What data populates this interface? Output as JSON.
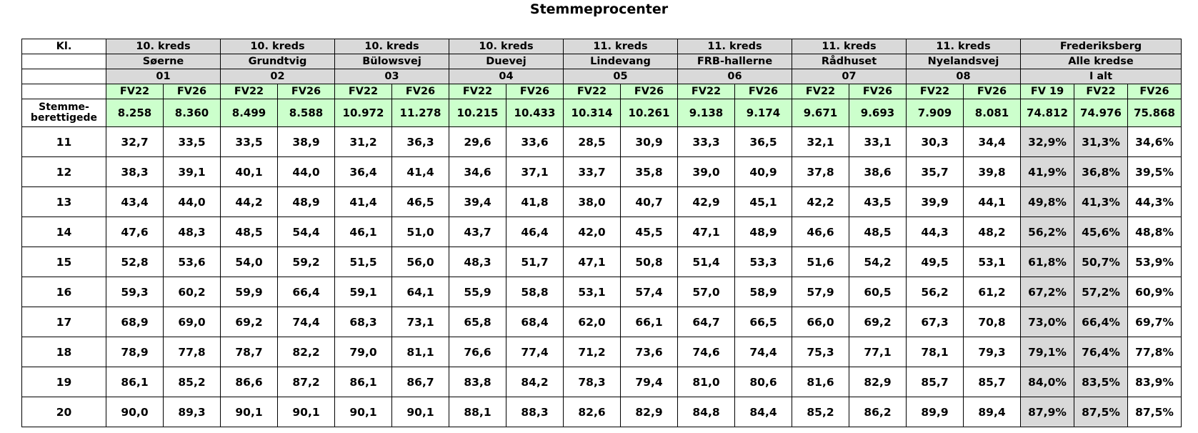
{
  "title": "Stemmeprocenter",
  "header": {
    "corner": "Kl.",
    "groups": [
      {
        "kreds": "10. kreds",
        "name": "Søerne",
        "code": "01",
        "cols": [
          "FV22",
          "FV26"
        ]
      },
      {
        "kreds": "10. kreds",
        "name": "Grundtvig",
        "code": "02",
        "cols": [
          "FV22",
          "FV26"
        ]
      },
      {
        "kreds": "10. kreds",
        "name": "Bülowsvej",
        "code": "03",
        "cols": [
          "FV22",
          "FV26"
        ]
      },
      {
        "kreds": "10. kreds",
        "name": "Duevej",
        "code": "04",
        "cols": [
          "FV22",
          "FV26"
        ]
      },
      {
        "kreds": "11. kreds",
        "name": "Lindevang",
        "code": "05",
        "cols": [
          "FV22",
          "FV26"
        ]
      },
      {
        "kreds": "11. kreds",
        "name": "FRB-hallerne",
        "code": "06",
        "cols": [
          "FV22",
          "FV26"
        ]
      },
      {
        "kreds": "11. kreds",
        "name": "Rådhuset",
        "code": "07",
        "cols": [
          "FV22",
          "FV26"
        ]
      },
      {
        "kreds": "11. kreds",
        "name": "Nyelandsvej",
        "code": "08",
        "cols": [
          "FV22",
          "FV26"
        ]
      },
      {
        "kreds": "Frederiksberg",
        "name": "Alle kredse",
        "code": "I alt",
        "cols": [
          "FV 19",
          "FV22",
          "FV26"
        ]
      }
    ]
  },
  "eligible": {
    "label": [
      "Stemme-",
      "berettigede"
    ],
    "values": [
      "8.258",
      "8.360",
      "8.499",
      "8.588",
      "10.972",
      "11.278",
      "10.215",
      "10.433",
      "10.314",
      "10.261",
      "9.138",
      "9.174",
      "9.671",
      "9.693",
      "7.909",
      "8.081",
      "74.812",
      "74.976",
      "75.868"
    ]
  },
  "rows": [
    [
      "11",
      "32,7",
      "33,5",
      "33,5",
      "38,9",
      "31,2",
      "36,3",
      "29,6",
      "33,6",
      "28,5",
      "30,9",
      "33,3",
      "36,5",
      "32,1",
      "33,1",
      "30,3",
      "34,4",
      "32,9%",
      "31,3%",
      "34,6%"
    ],
    [
      "12",
      "38,3",
      "39,1",
      "40,1",
      "44,0",
      "36,4",
      "41,4",
      "34,6",
      "37,1",
      "33,7",
      "35,8",
      "39,0",
      "40,9",
      "37,8",
      "38,6",
      "35,7",
      "39,8",
      "41,9%",
      "36,8%",
      "39,5%"
    ],
    [
      "13",
      "43,4",
      "44,0",
      "44,2",
      "48,9",
      "41,4",
      "46,5",
      "39,4",
      "41,8",
      "38,0",
      "40,7",
      "42,9",
      "45,1",
      "42,2",
      "43,5",
      "39,9",
      "44,1",
      "49,8%",
      "41,3%",
      "44,3%"
    ],
    [
      "14",
      "47,6",
      "48,3",
      "48,5",
      "54,4",
      "46,1",
      "51,0",
      "43,7",
      "46,4",
      "42,0",
      "45,5",
      "47,1",
      "48,9",
      "46,6",
      "48,5",
      "44,3",
      "48,2",
      "56,2%",
      "45,6%",
      "48,8%"
    ],
    [
      "15",
      "52,8",
      "53,6",
      "54,0",
      "59,2",
      "51,5",
      "56,0",
      "48,3",
      "51,7",
      "47,1",
      "50,8",
      "51,4",
      "53,3",
      "51,6",
      "54,2",
      "49,5",
      "53,1",
      "61,8%",
      "50,7%",
      "53,9%"
    ],
    [
      "16",
      "59,3",
      "60,2",
      "59,9",
      "66,4",
      "59,1",
      "64,1",
      "55,9",
      "58,8",
      "53,1",
      "57,4",
      "57,0",
      "58,9",
      "57,9",
      "60,5",
      "56,2",
      "61,2",
      "67,2%",
      "57,2%",
      "60,9%"
    ],
    [
      "17",
      "68,9",
      "69,0",
      "69,2",
      "74,4",
      "68,3",
      "73,1",
      "65,8",
      "68,4",
      "62,0",
      "66,1",
      "64,7",
      "66,5",
      "66,0",
      "69,2",
      "67,3",
      "70,8",
      "73,0%",
      "66,4%",
      "69,7%"
    ],
    [
      "18",
      "78,9",
      "77,8",
      "78,7",
      "82,2",
      "79,0",
      "81,1",
      "76,6",
      "77,4",
      "71,2",
      "73,6",
      "74,6",
      "74,4",
      "75,3",
      "77,1",
      "78,1",
      "79,3",
      "79,1%",
      "76,4%",
      "77,8%"
    ],
    [
      "19",
      "86,1",
      "85,2",
      "86,6",
      "87,2",
      "86,1",
      "86,7",
      "83,8",
      "84,2",
      "78,3",
      "79,4",
      "81,0",
      "80,6",
      "81,6",
      "82,9",
      "85,7",
      "85,7",
      "84,0%",
      "83,5%",
      "83,9%"
    ],
    [
      "20",
      "90,0",
      "89,3",
      "90,1",
      "90,1",
      "90,1",
      "90,1",
      "88,1",
      "88,3",
      "82,6",
      "82,9",
      "84,8",
      "84,4",
      "85,2",
      "86,2",
      "89,9",
      "89,4",
      "87,9%",
      "87,5%",
      "87,5%"
    ]
  ]
}
